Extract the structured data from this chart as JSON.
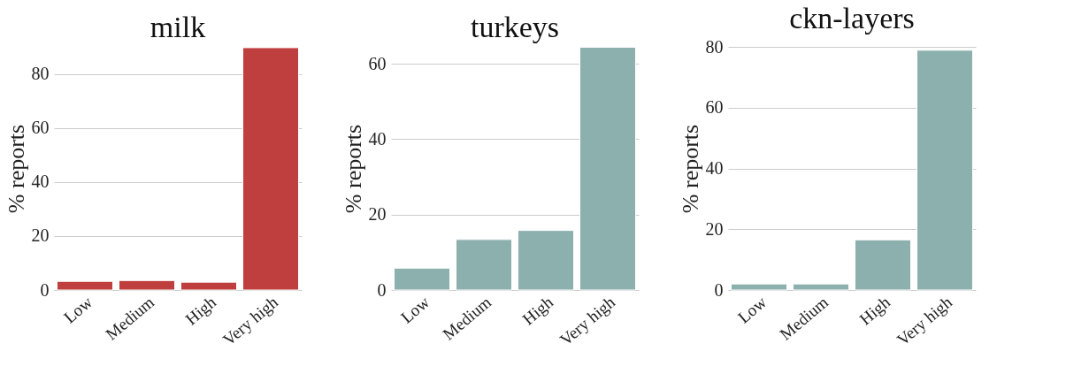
{
  "chart_data": [
    {
      "type": "bar",
      "title": "milk",
      "ylabel": "% reports",
      "categories": [
        "Low",
        "Medium",
        "High",
        "Very high"
      ],
      "values": [
        3.2,
        3.5,
        2.9,
        89.7
      ],
      "color": "#bf3e3e",
      "ylim": [
        0,
        90
      ],
      "yticks": [
        0,
        20,
        40,
        60,
        80
      ],
      "grid": "y"
    },
    {
      "type": "bar",
      "title": "turkeys",
      "ylabel": "% reports",
      "categories": [
        "Low",
        "Medium",
        "High",
        "Very high"
      ],
      "values": [
        5.8,
        13.4,
        15.8,
        64.4
      ],
      "color": "#8cb0ae",
      "ylim": [
        0,
        64.5
      ],
      "yticks": [
        0,
        20,
        40,
        60
      ],
      "grid": "y"
    },
    {
      "type": "bar",
      "title": "ckn-layers",
      "ylabel": "% reports",
      "categories": [
        "Low",
        "Medium",
        "High",
        "Very high"
      ],
      "values": [
        2.0,
        2.0,
        16.5,
        78.9
      ],
      "color": "#8cb0ae",
      "ylim": [
        0,
        80
      ],
      "yticks": [
        0,
        20,
        40,
        60,
        80
      ],
      "grid": "y"
    }
  ]
}
